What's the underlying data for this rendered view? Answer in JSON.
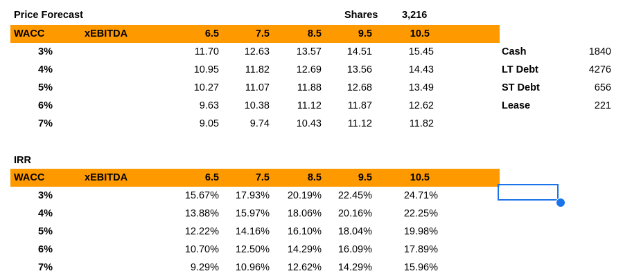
{
  "price": {
    "title": "Price Forecast",
    "shares_label": "Shares",
    "shares_value": "3,216",
    "header": {
      "wacc": "WACC",
      "ebitda": "xEBITDA",
      "cols": [
        "6.5",
        "7.5",
        "8.5",
        "9.5",
        "10.5"
      ]
    },
    "rows": [
      {
        "label": "3%",
        "values": [
          "11.70",
          "12.63",
          "13.57",
          "14.51",
          "15.45"
        ]
      },
      {
        "label": "4%",
        "values": [
          "10.95",
          "11.82",
          "12.69",
          "13.56",
          "14.43"
        ]
      },
      {
        "label": "5%",
        "values": [
          "10.27",
          "11.07",
          "11.88",
          "12.68",
          "13.49"
        ]
      },
      {
        "label": "6%",
        "values": [
          "9.63",
          "10.38",
          "11.12",
          "11.87",
          "12.62"
        ]
      },
      {
        "label": "7%",
        "values": [
          "9.05",
          "9.74",
          "10.43",
          "11.12",
          "11.82"
        ]
      }
    ]
  },
  "side": [
    {
      "label": "Cash",
      "value": "1840"
    },
    {
      "label": "LT Debt",
      "value": "4276"
    },
    {
      "label": "ST Debt",
      "value": "656"
    },
    {
      "label": "Lease",
      "value": "221"
    }
  ],
  "irr": {
    "title": "IRR",
    "header": {
      "wacc": "WACC",
      "ebitda": "xEBITDA",
      "cols": [
        "6.5",
        "7.5",
        "8.5",
        "9.5",
        "10.5"
      ]
    },
    "rows": [
      {
        "label": "3%",
        "values": [
          "15.67%",
          "17.93%",
          "20.19%",
          "22.45%",
          "24.71%"
        ]
      },
      {
        "label": "4%",
        "values": [
          "13.88%",
          "15.97%",
          "18.06%",
          "20.16%",
          "22.25%"
        ]
      },
      {
        "label": "5%",
        "values": [
          "12.22%",
          "14.16%",
          "16.10%",
          "18.04%",
          "19.98%"
        ]
      },
      {
        "label": "6%",
        "values": [
          "10.70%",
          "12.50%",
          "14.29%",
          "16.09%",
          "17.89%"
        ]
      },
      {
        "label": "7%",
        "values": [
          "9.29%",
          "10.96%",
          "12.62%",
          "14.29%",
          "15.96%"
        ]
      }
    ]
  },
  "colors": {
    "header_band": "#ff9900",
    "selection": "#1a73e8"
  }
}
